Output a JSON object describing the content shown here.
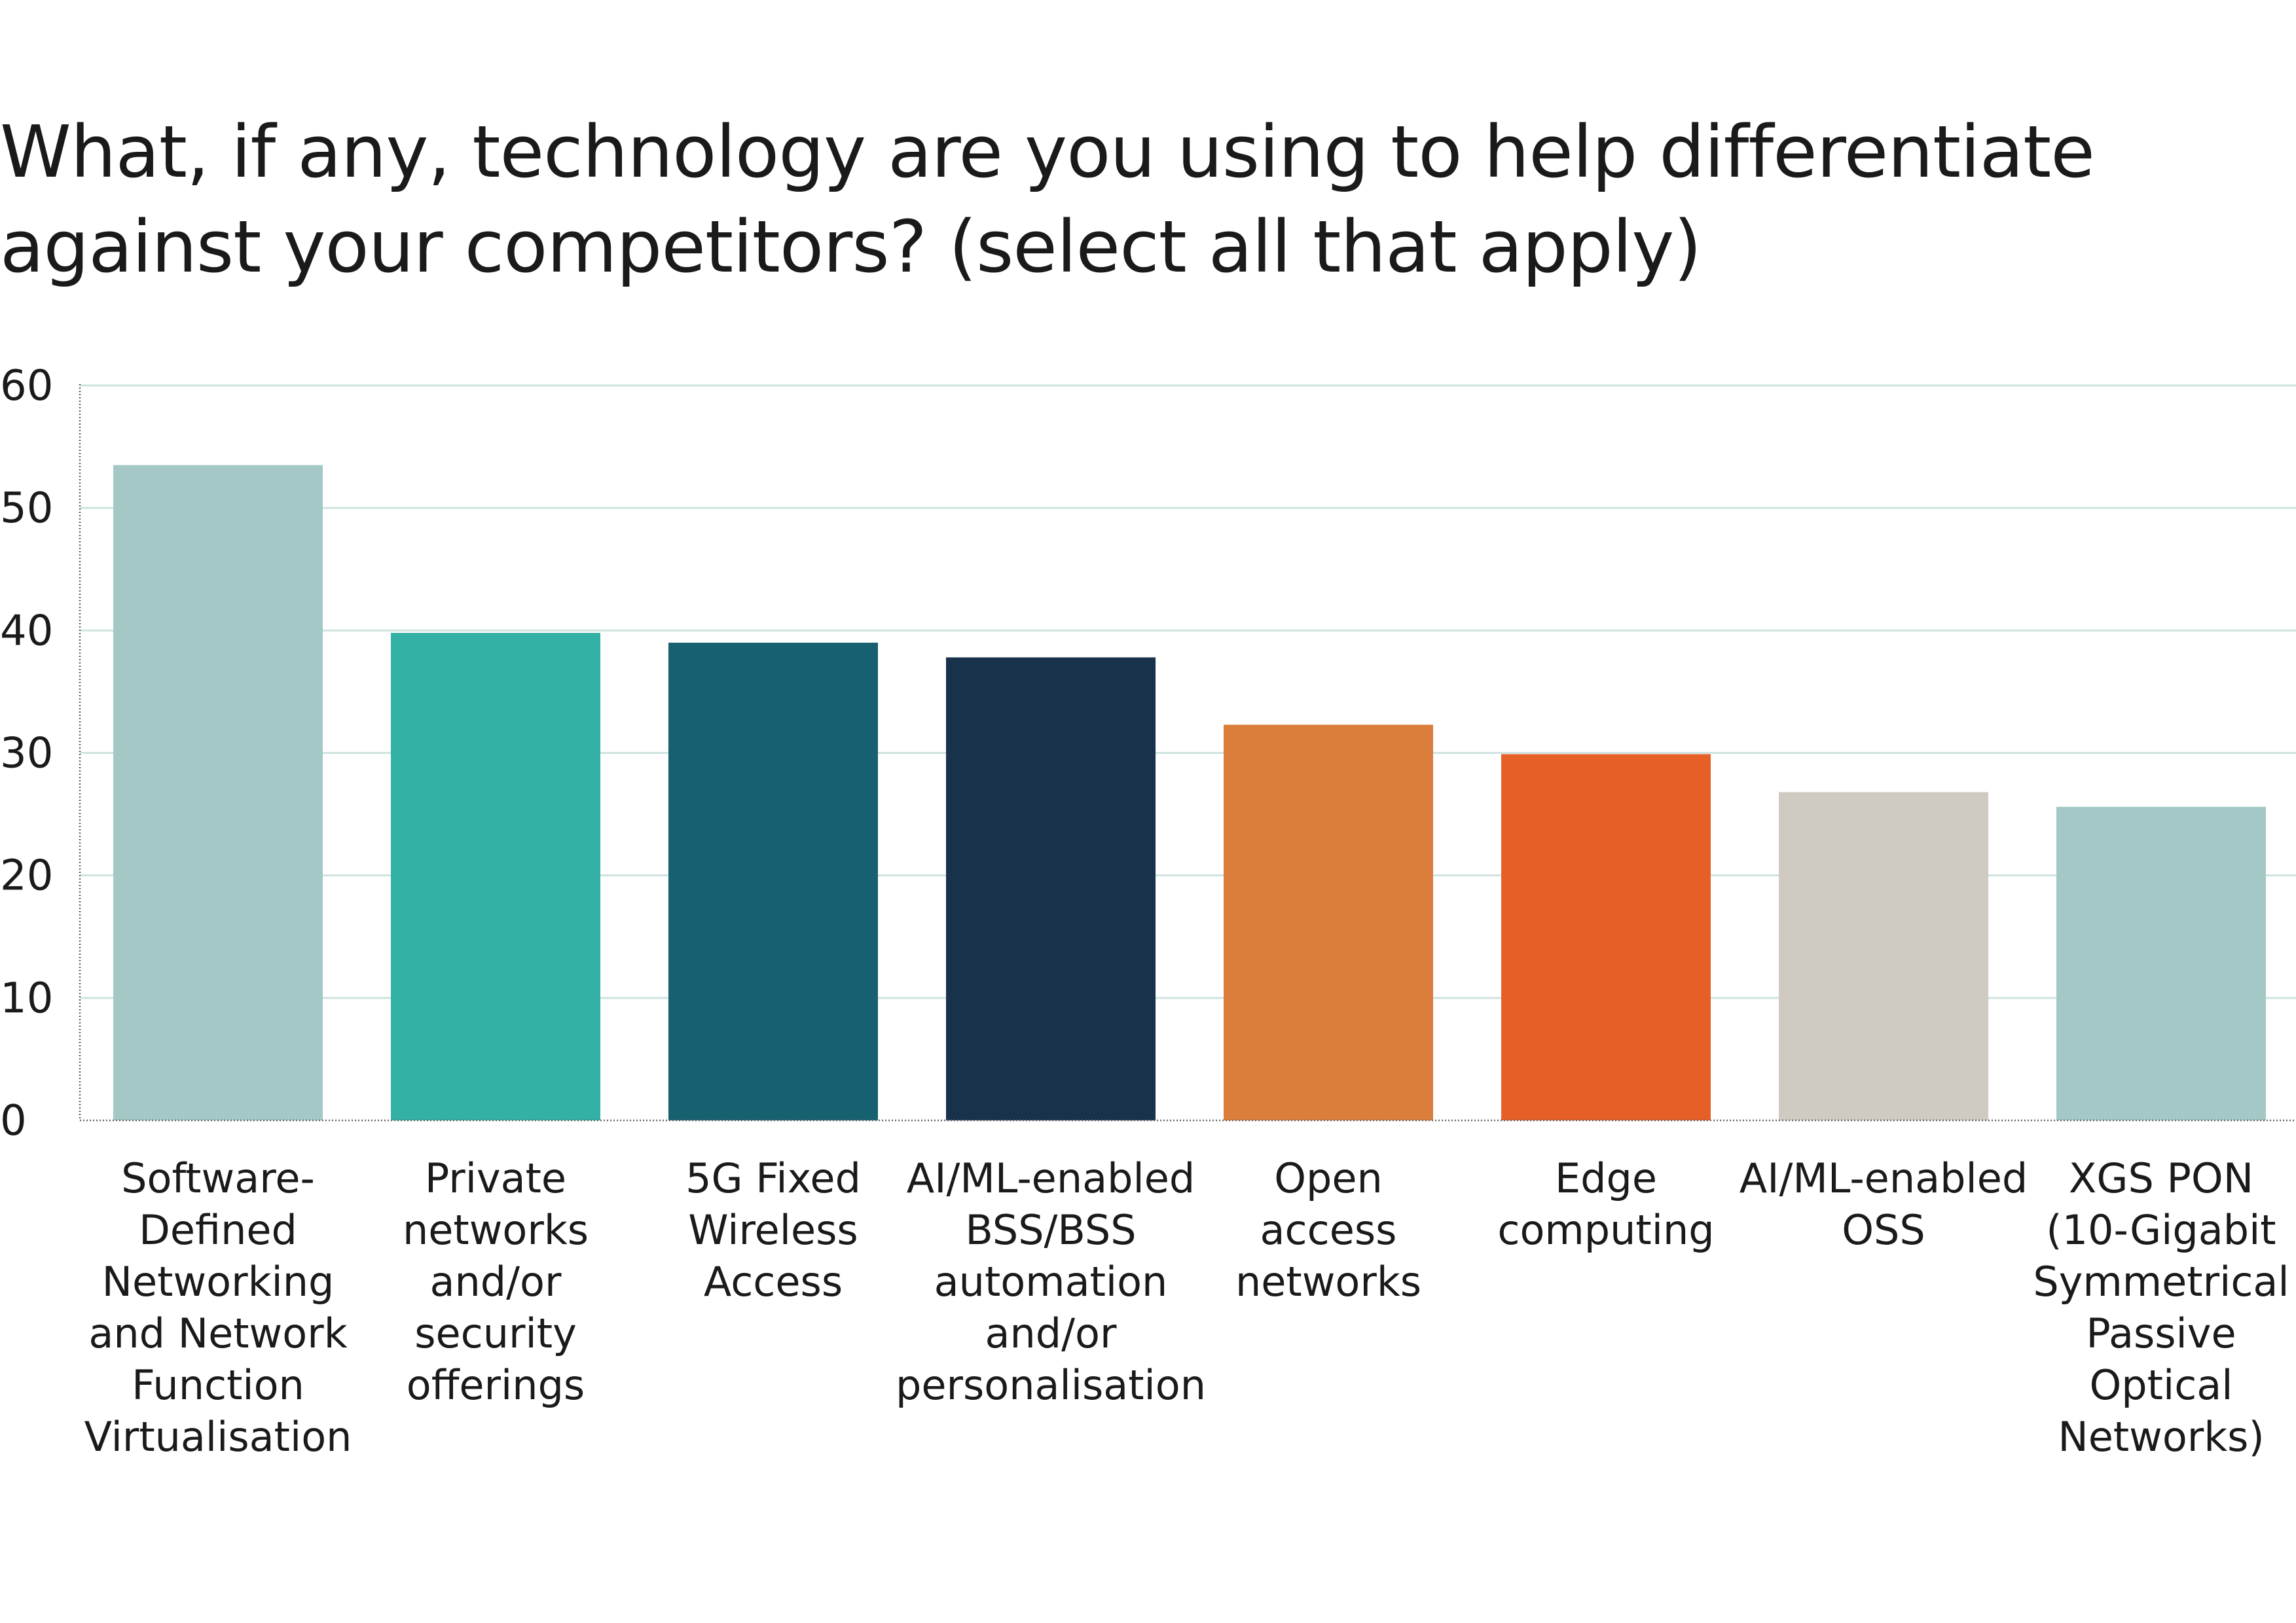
{
  "chart_data": {
    "type": "bar",
    "title": "What, if any, technology are you using to help differentiate against your competitors? (select all that apply)",
    "categories": [
      "Software-Defined Networking and Network Function Virtualisation",
      "Private networks and/or security offerings",
      "5G Fixed Wireless Access",
      "AI/ML-enabled BSS/BSS automation and/or personalisation",
      "Open access networks",
      "Edge computing",
      "AI/ML-enabled OSS",
      "XGS PON (10-Gigabit Symmetrical Passive Optical Networks)"
    ],
    "category_label_lines": [
      [
        "Software-",
        "Defined",
        "Networking",
        "and Network",
        "Function",
        "Virtualisation"
      ],
      [
        "Private",
        "networks",
        "and/or",
        "security",
        "offerings"
      ],
      [
        "5G Fixed",
        "Wireless",
        "Access"
      ],
      [
        "AI/ML-enabled",
        "BSS/BSS",
        "automation",
        "and/or",
        "personalisation"
      ],
      [
        "Open",
        "access",
        "networks"
      ],
      [
        "Edge",
        "computing"
      ],
      [
        "AI/ML-enabled",
        "OSS"
      ],
      [
        "XGS PON",
        "(10-Gigabit",
        "Symmetrical",
        "Passive",
        "Optical",
        "Networks)"
      ]
    ],
    "values": [
      53.5,
      39.8,
      39.0,
      37.8,
      32.3,
      29.9,
      26.8,
      25.6
    ],
    "colors": [
      "#a4c8c5",
      "#33b1a4",
      "#16606f",
      "#19324b",
      "#db7e3b",
      "#e55f27",
      "#cfcac2",
      "#a4c8c5"
    ],
    "xlabel": "",
    "ylabel": "",
    "ylim": [
      0,
      60
    ],
    "yticks": [
      "0",
      "10",
      "20",
      "30",
      "40",
      "50",
      "60"
    ],
    "grid": true,
    "legend": "none"
  }
}
